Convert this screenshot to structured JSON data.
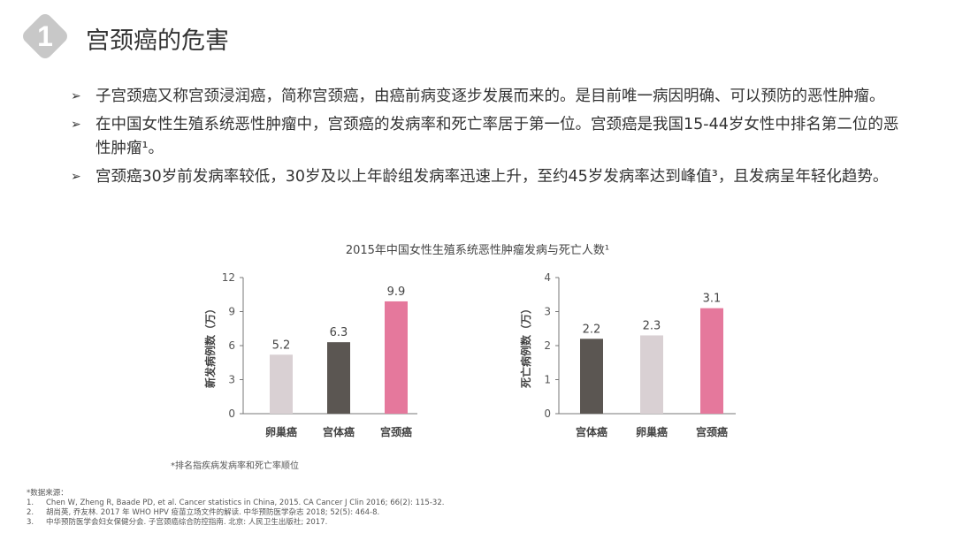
{
  "header": {
    "badge_number": "1",
    "title": "宫颈癌的危害"
  },
  "bullets": [
    "子宫颈癌又称宫颈浸润癌，简称宫颈癌，由癌前病变逐步发展而来的。是目前唯一病因明确、可以预防的恶性肿瘤。",
    "在中国女性生殖系统恶性肿瘤中，宫颈癌的发病率和死亡率居于第一位。宫颈癌是我国15-44岁女性中排名第二位的恶性肿瘤¹。",
    "宫颈癌30岁前发病率较低，30岁及以上年龄组发病率迅速上升，至约45岁发病率达到峰值³，且发病呈年轻化趋势。"
  ],
  "chart_title": "2015年中国女性生殖系统恶性肿瘤发病与死亡人数¹",
  "chart_data": [
    {
      "type": "bar",
      "ylabel": "新发病例数（万）",
      "ylim": [
        0,
        12
      ],
      "yticks": [
        "0",
        "3",
        "6",
        "9",
        "12"
      ],
      "categories": [
        "卵巢癌",
        "宫体癌",
        "宫颈癌"
      ],
      "values": [
        5.2,
        6.3,
        9.9
      ],
      "labels": [
        "5.2",
        "6.3",
        "9.9"
      ],
      "colors": [
        "#d9d0d3",
        "#5b5652",
        "#e5789c"
      ]
    },
    {
      "type": "bar",
      "ylabel": "死亡病例数（万）",
      "ylim": [
        0,
        4
      ],
      "yticks": [
        "0",
        "1",
        "2",
        "3",
        "4"
      ],
      "categories": [
        "宫体癌",
        "卵巢癌",
        "宫颈癌"
      ],
      "values": [
        2.2,
        2.3,
        3.1
      ],
      "labels": [
        "2.2",
        "2.3",
        "3.1"
      ],
      "colors": [
        "#5b5652",
        "#d9d0d3",
        "#e5789c"
      ]
    }
  ],
  "note": "*排名指疾病发病率和死亡率顺位",
  "references": {
    "heading": "*数据来源：",
    "items": [
      {
        "n": "1.",
        "text": "Chen W, Zheng R, Baade PD, et al. Cancer statistics in China, 2015. CA Cancer J Clin 2016; 66(2): 115-32."
      },
      {
        "n": "2.",
        "text": "胡尚英, 乔友林. 2017 年 WHO HPV 疫苗立场文件的解读. 中华预防医学杂志 2018; 52(5): 464-8."
      },
      {
        "n": "3.",
        "text": "中华预防医学会妇女保健分会. 子宫颈癌综合防控指南. 北京: 人民卫生出版社; 2017."
      }
    ]
  }
}
